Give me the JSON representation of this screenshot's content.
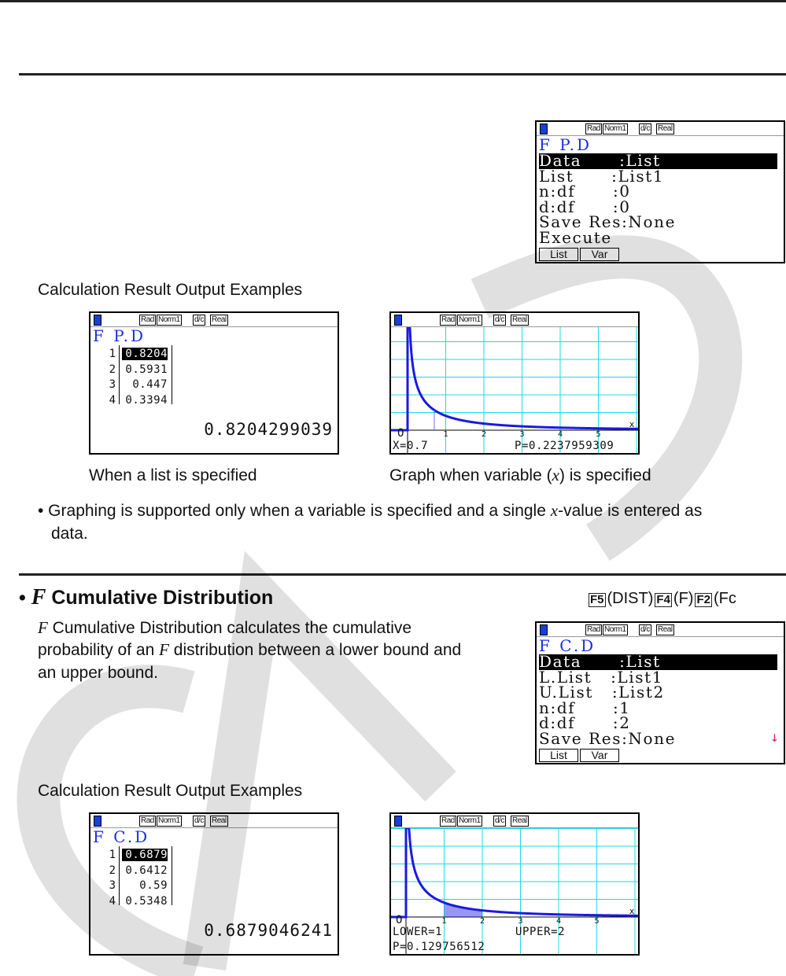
{
  "colors": {
    "accent_title": "#1a2fe0",
    "graph_curve": "#1a1ae0",
    "grid": "#22d8e8",
    "scroll_arrow": "#e0207a",
    "watermark": "#d8d8d8"
  },
  "watermark": "CASIO",
  "section1": {
    "results_heading": "Calculation Result Output Examples",
    "caption_list": "When a list is specified",
    "caption_graph_prefix": "Graph when variable (",
    "caption_graph_var": "x",
    "caption_graph_suffix": ") is specified",
    "note_prefix": "• Graphing is supported only when a variable is specified and a single ",
    "note_var": "x",
    "note_suffix": "-value is entered as",
    "note_line2": "data."
  },
  "section2": {
    "bullet": "•",
    "title_var": "F",
    "title": "Cumulative Distribution",
    "keys": [
      {
        "key": "F5",
        "label": "(DIST)"
      },
      {
        "key": "F4",
        "label": "(F)"
      },
      {
        "key": "F2",
        "label": "(Fc"
      }
    ],
    "desc_var": "F",
    "desc_line1": " Cumulative Distribution calculates the cumulative",
    "desc_line2a": "probability of an ",
    "desc_line2_var": "F",
    "desc_line2b": " distribution between a lower bound and",
    "desc_line3": "an upper bound.",
    "results_heading": "Calculation Result Output Examples"
  },
  "status_badges": [
    "Rad",
    "Norm1",
    "d/c",
    "Real"
  ],
  "screens": {
    "pd_setup": {
      "title": "F P.D",
      "rows": [
        "Data      :List",
        "List      :List1",
        "n:df      :0",
        "d:df      :0",
        "Save Res:None",
        "Execute"
      ],
      "selected_row": 0,
      "fkeys": [
        "List",
        "Var"
      ]
    },
    "pd_list": {
      "title": "F P.D",
      "indices": [
        "1",
        "2",
        "3",
        "4"
      ],
      "values": [
        "0.8204",
        "0.5931",
        "0.447",
        "0.3394"
      ],
      "result": "0.8204299039"
    },
    "pd_graph": {
      "origin": "O",
      "x_ticks": [
        "1",
        "2",
        "3",
        "4",
        "5"
      ],
      "axis_label": "x",
      "x_readout": "X=0.7",
      "p_readout": "P=0.2237959309",
      "x_value": 0.7
    },
    "cd_setup": {
      "title": "F C.D",
      "rows": [
        "Data      :List",
        "L.List   :List1",
        "U.List   :List2",
        "n:df      :1",
        "d:df      :2",
        "Save Res:None"
      ],
      "selected_row": 0,
      "fkeys": [
        "List",
        "Var"
      ],
      "scroll_arrow": "↓"
    },
    "cd_list": {
      "title": "F C.D",
      "indices": [
        "1",
        "2",
        "3",
        "4"
      ],
      "values": [
        "0.6879",
        "0.6412",
        "0.59",
        "0.5348"
      ],
      "result": "0.6879046241"
    },
    "cd_graph": {
      "origin": "O",
      "x_ticks": [
        "1",
        "2",
        "3",
        "4",
        "5"
      ],
      "axis_label": "x",
      "lower_readout": "LOWER=1",
      "upper_readout": "UPPER=2",
      "p_readout": "P=0.129756512",
      "lower": 1,
      "upper": 2
    }
  }
}
